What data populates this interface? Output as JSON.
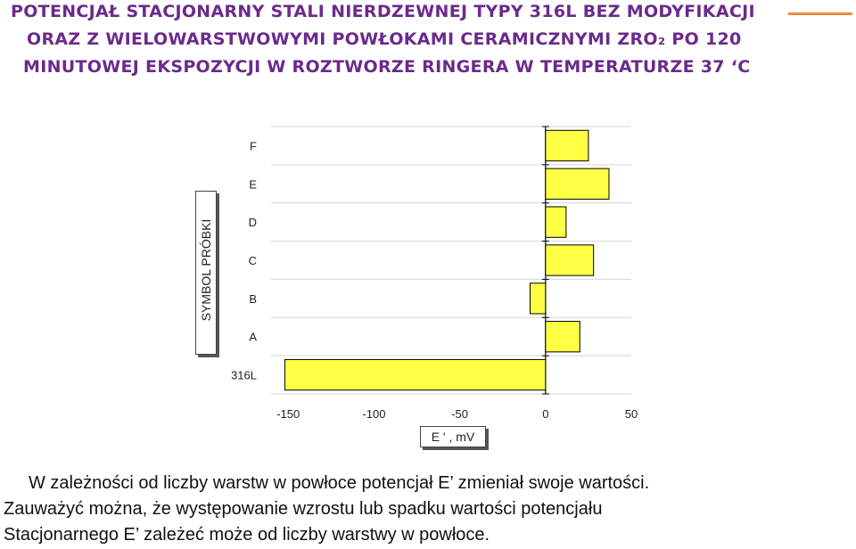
{
  "slide": {
    "title_lines": [
      "POTENCJAŁ STACJONARNY STALI NIERDZEWNEJ TYPY 316L BEZ MODYFIKACJI",
      "ORAZ Z WIELOWARSTWOWYMI POWŁOKAMI CERAMICZNYMI ZRO₂ PO 120",
      "MINUTOWEJ EKSPOZYCJI W ROZTWORZE RINGERA W TEMPERATURZE 37 ‘C"
    ],
    "accent_color": "#f08a3c",
    "title_color": "#6b2a8c",
    "paragraph_lines": [
      "W zależności od liczby warstw w powłoce potencjał E’ zmieniał swoje wartości.",
      "Zauważyć można, że występowanie wzrostu lub spadku wartości potencjału",
      "Stacjonarnego E’  zależeć może od liczby warstwy w powłoce."
    ]
  },
  "chart_data": {
    "type": "bar",
    "orientation": "horizontal",
    "categories": [
      "316L",
      "A",
      "B",
      "C",
      "D",
      "E",
      "F"
    ],
    "values": [
      -152,
      20,
      -9,
      28,
      12,
      37,
      25
    ],
    "xlabel": "E ' , mV",
    "ylabel": "SYMBOL PRÓBKI",
    "xlim": [
      -150,
      50
    ],
    "xticks": [
      "-150",
      "-100",
      "-50",
      "0",
      "50"
    ],
    "bar_color": "#ffff44",
    "grid": true
  }
}
